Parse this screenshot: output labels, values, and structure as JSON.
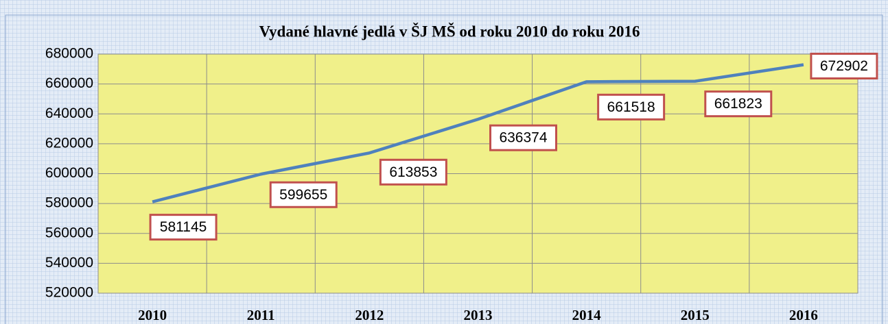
{
  "chart_data": {
    "type": "line",
    "title": "Vydané hlavné jedlá v ŠJ MŠ od roku 2010 do roku 2016",
    "categories": [
      "2010",
      "2011",
      "2012",
      "2013",
      "2014",
      "2015",
      "2016"
    ],
    "series": [
      {
        "name": "Vydané hlavné jedlá",
        "color": "#4f81bd",
        "values": [
          581145,
          599655,
          613853,
          636374,
          661518,
          661823,
          672902
        ]
      }
    ],
    "ylim": [
      520000,
      680000
    ],
    "yticks": [
      520000,
      540000,
      560000,
      580000,
      600000,
      620000,
      640000,
      660000,
      680000
    ],
    "grid": true,
    "data_labels": true
  }
}
